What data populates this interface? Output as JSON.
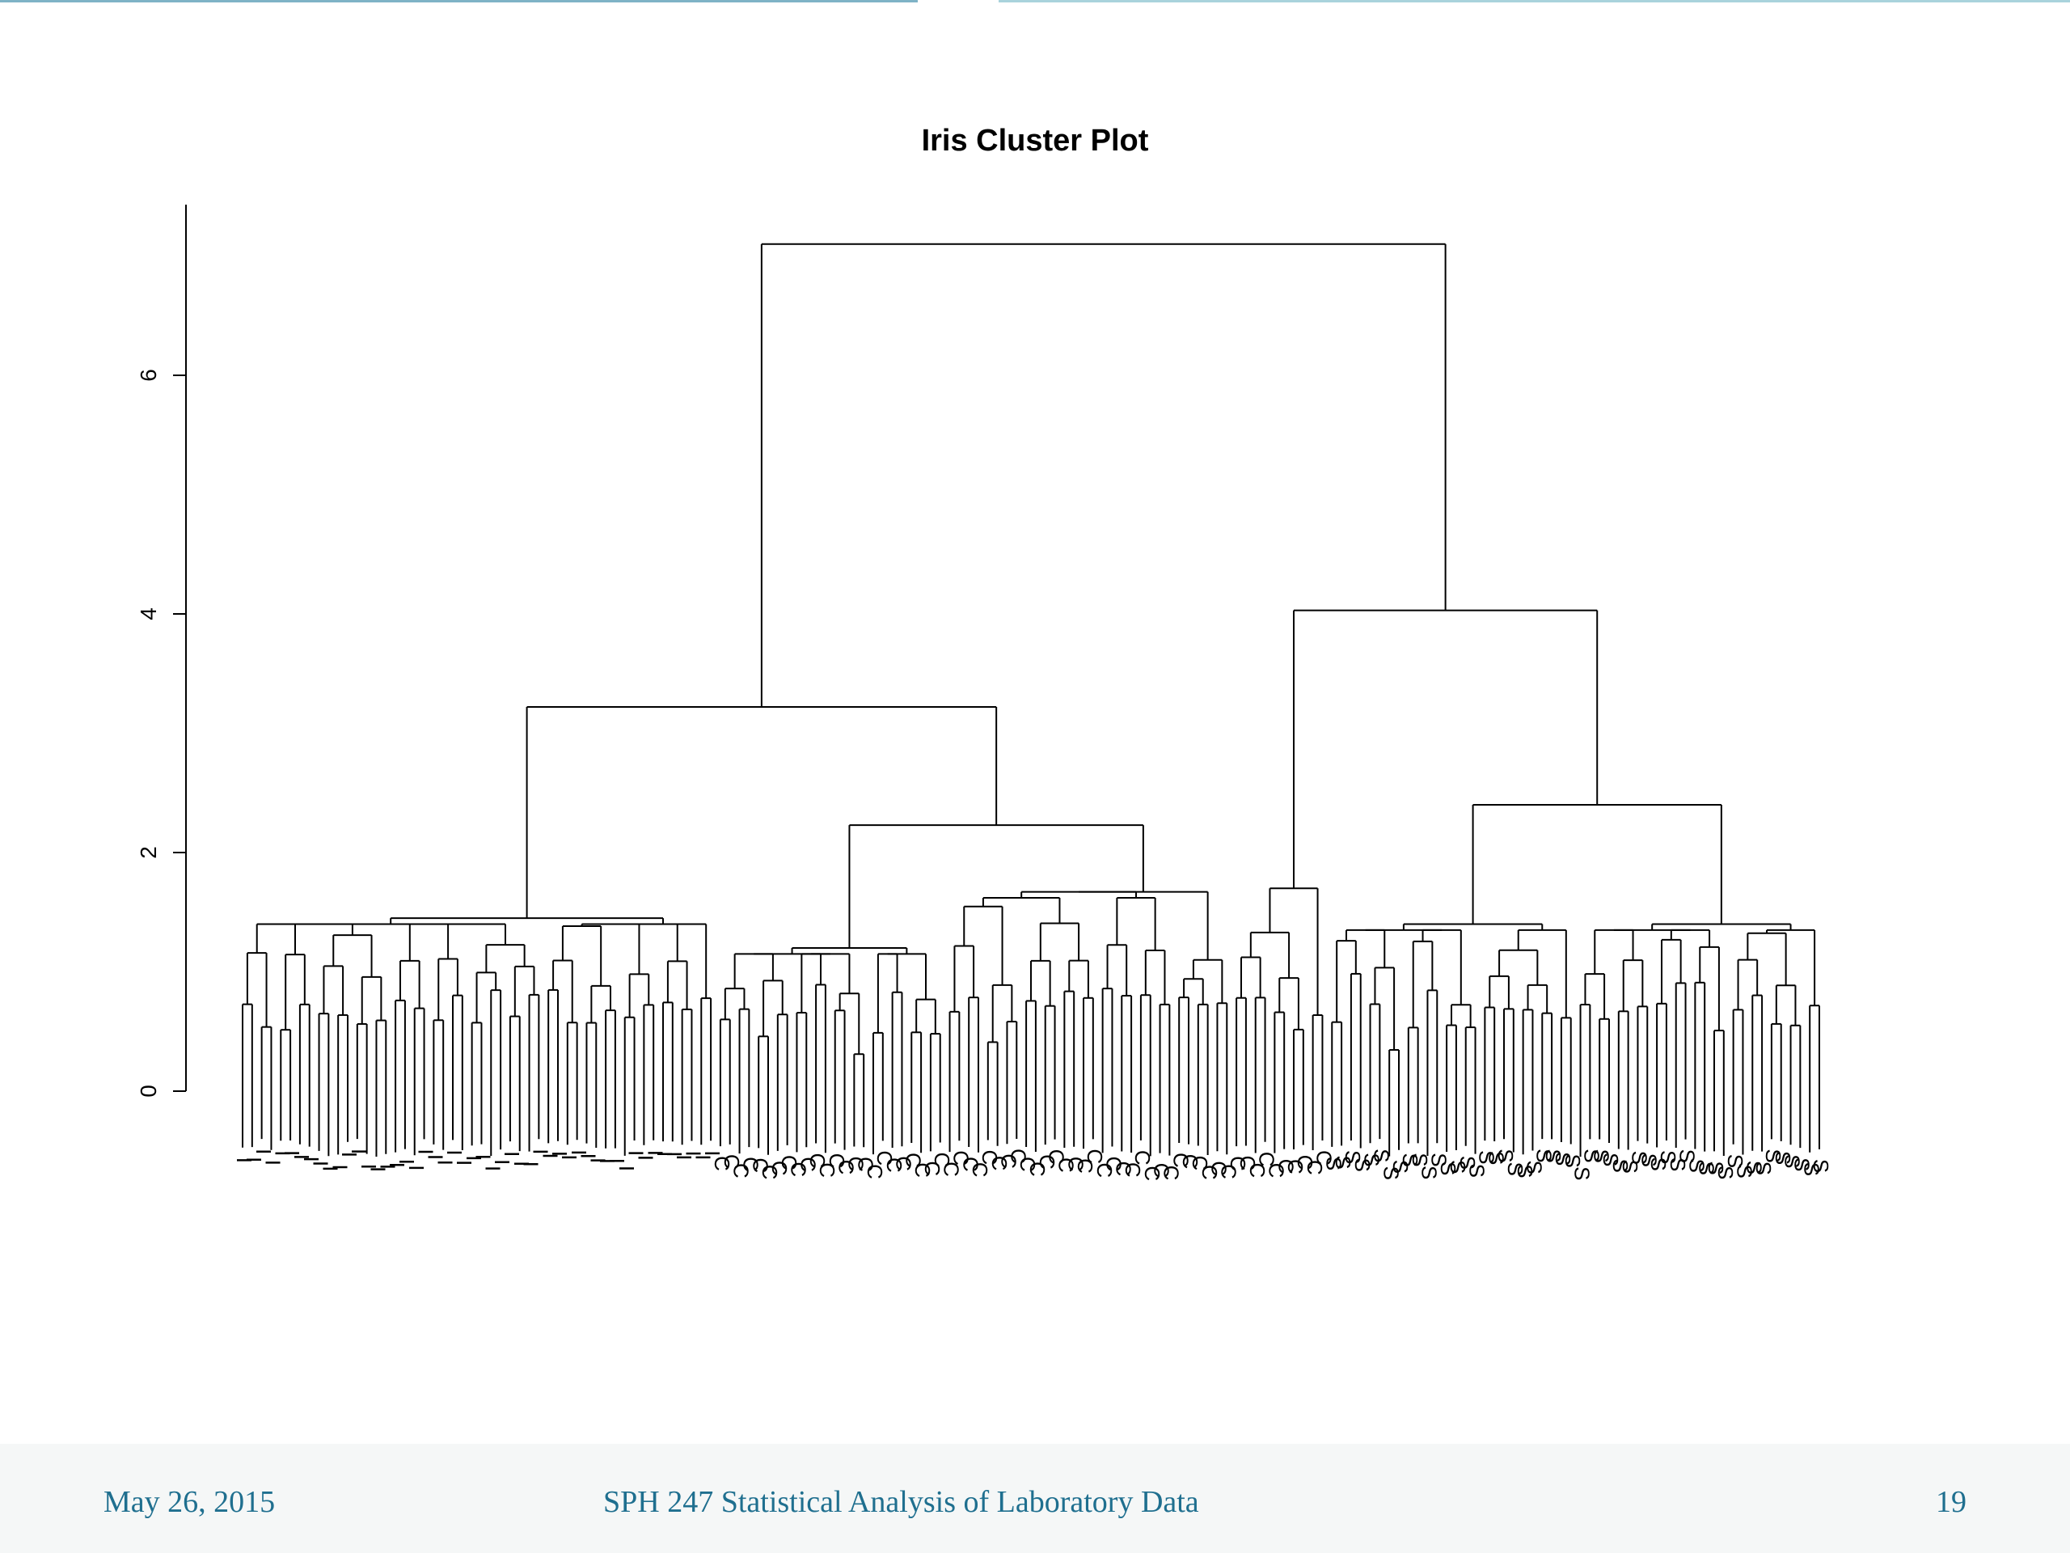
{
  "slide": {
    "date": "May 26, 2015",
    "course": "SPH 247 Statistical Analysis of Laboratory Data",
    "page": "19",
    "accent": "#1f6f8f"
  },
  "chart_data": {
    "type": "dendrogram",
    "title": "Iris Cluster Plot",
    "xlabel": "",
    "ylabel": "",
    "ylim": [
      -0.8,
      7.3
    ],
    "yticks": [
      0,
      2,
      4,
      6
    ],
    "yticklabels": [
      "0",
      "2",
      "4",
      "6"
    ],
    "leaf_label_set": [
      "I",
      "C",
      "S"
    ],
    "root_height": 7.1,
    "merges": [
      {
        "height": 7.1,
        "groups": [
          "I + C",
          "C + S"
        ]
      },
      {
        "height": 4.03,
        "groups": [
          "C",
          "S"
        ]
      },
      {
        "height": 3.22,
        "groups": [
          "I",
          "I + C"
        ]
      },
      {
        "height": 2.4
      },
      {
        "height": 2.23
      },
      {
        "height": 1.67
      },
      {
        "height": 1.7
      },
      {
        "height": 1.45
      },
      {
        "height": 1.4
      },
      {
        "height": 1.2
      },
      {
        "height": 1.18
      },
      {
        "height": 1.1
      },
      {
        "height": 1.05
      },
      {
        "height": 1.0
      }
    ],
    "groups": [
      {
        "label": "I",
        "count": 50
      },
      {
        "label": "C",
        "count": 48
      },
      {
        "label": "S",
        "count": 52
      }
    ]
  }
}
